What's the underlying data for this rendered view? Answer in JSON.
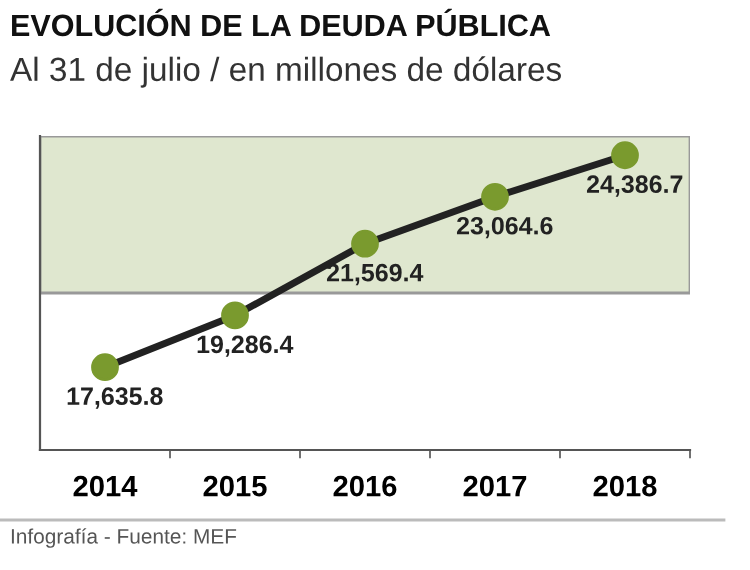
{
  "chart_data": {
    "type": "line",
    "title": "EVOLUCIÓN DE LA DEUDA PÚBLICA",
    "subtitle": "Al 31 de julio / en millones de dólares",
    "categories": [
      "2014",
      "2015",
      "2016",
      "2017",
      "2018"
    ],
    "series": [
      {
        "color": "#222222",
        "values": [
          17635.8,
          19286.4,
          21569.4,
          23064.6,
          24386.7
        ],
        "value_labels": [
          "17,635.8",
          "19,286.4",
          "21,569.4",
          "23,064.6",
          "24,386.7"
        ]
      }
    ],
    "marker": "circle",
    "line_style": "solid",
    "ylim": [
      15000,
      25000
    ],
    "tick_labels": "x",
    "grid": false,
    "legend": false,
    "bands": [
      {
        "axis": "y",
        "from": 20000,
        "to": 25000,
        "color": "#dfe7cf"
      }
    ],
    "annotations": [
      "Infografía - Fuente: MEF"
    ]
  }
}
